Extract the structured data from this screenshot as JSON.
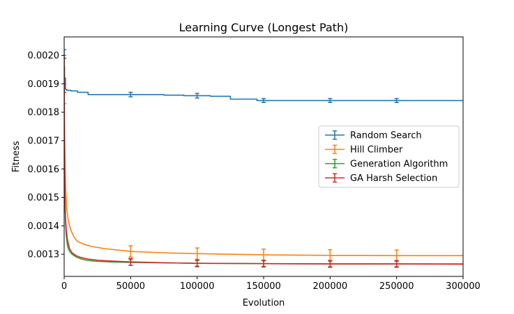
{
  "chart_data": {
    "type": "line",
    "title": "Learning Curve (Longest Path)",
    "xlabel": "Evolution",
    "ylabel": "Fitness",
    "xlim": [
      0,
      300000
    ],
    "ylim": [
      0.001222,
      0.002065
    ],
    "xticks": [
      0,
      50000,
      100000,
      150000,
      200000,
      250000,
      300000
    ],
    "xtick_labels": [
      "0",
      "50000",
      "100000",
      "150000",
      "200000",
      "250000",
      "300000"
    ],
    "yticks": [
      0.0013,
      0.0014,
      0.0015,
      0.0016,
      0.0017,
      0.0018,
      0.0019,
      0.002
    ],
    "ytick_labels": [
      "0.0013",
      "0.0014",
      "0.0015",
      "0.0016",
      "0.0017",
      "0.0018",
      "0.0019",
      "0.0020"
    ],
    "grid": false,
    "legend_position": "center-right",
    "series": [
      {
        "name": "Random Search",
        "color": "#1f77b4",
        "step": true,
        "x": [
          0,
          300,
          1000,
          2000,
          5000,
          10000,
          18000,
          50000,
          75000,
          90000,
          110000,
          125000,
          145000,
          300000
        ],
        "y": [
          0.00196,
          0.00192,
          0.00188,
          0.001877,
          0.001875,
          0.00187,
          0.001862,
          0.001862,
          0.00186,
          0.001858,
          0.001856,
          0.001846,
          0.001841,
          0.001841
        ],
        "error_bars": [
          {
            "x": 0,
            "y": 0.00196,
            "err": 6e-05
          },
          {
            "x": 50000,
            "y": 0.001862,
            "err": 8e-06
          },
          {
            "x": 100000,
            "y": 0.001858,
            "err": 8e-06
          },
          {
            "x": 150000,
            "y": 0.001841,
            "err": 7e-06
          },
          {
            "x": 200000,
            "y": 0.001841,
            "err": 7e-06
          },
          {
            "x": 250000,
            "y": 0.001841,
            "err": 7e-06
          }
        ]
      },
      {
        "name": "Hill Climber",
        "color": "#ff7f0e",
        "step": false,
        "x": [
          0,
          300,
          700,
          1200,
          2000,
          3000,
          5000,
          7500,
          10000,
          15000,
          20000,
          30000,
          40000,
          50000,
          75000,
          100000,
          125000,
          150000,
          175000,
          200000,
          225000,
          250000,
          275000,
          300000
        ],
        "y": [
          0.00191,
          0.00175,
          0.00162,
          0.00152,
          0.00146,
          0.00142,
          0.001385,
          0.00136,
          0.001345,
          0.001335,
          0.001328,
          0.00132,
          0.001315,
          0.00131,
          0.001305,
          0.001302,
          0.0013,
          0.001298,
          0.001297,
          0.001296,
          0.001296,
          0.001295,
          0.001295,
          0.001295
        ],
        "error_bars": [
          {
            "x": 0,
            "y": 0.00191,
            "err": 8e-05
          },
          {
            "x": 50000,
            "y": 0.00131,
            "err": 2e-05
          },
          {
            "x": 100000,
            "y": 0.001302,
            "err": 2e-05
          },
          {
            "x": 150000,
            "y": 0.001298,
            "err": 2e-05
          },
          {
            "x": 200000,
            "y": 0.001296,
            "err": 2e-05
          },
          {
            "x": 250000,
            "y": 0.001295,
            "err": 2e-05
          }
        ]
      },
      {
        "name": "Generation Algorithm",
        "color": "#2ca02c",
        "step": false,
        "x": [
          0,
          200,
          500,
          1000,
          1500,
          2500,
          4000,
          6000,
          9000,
          13000,
          18000,
          25000,
          35000,
          50000,
          75000,
          100000,
          150000,
          200000,
          250000,
          300000
        ],
        "y": [
          0.00194,
          0.00165,
          0.0015,
          0.00141,
          0.00137,
          0.00133,
          0.00131,
          0.0013,
          0.00129,
          0.001283,
          0.001278,
          0.001275,
          0.001273,
          0.001271,
          0.00127,
          0.001268,
          0.001267,
          0.001266,
          0.001266,
          0.001266
        ],
        "error_bars": [
          {
            "x": 0,
            "y": 0.00194,
            "err": 6e-05
          },
          {
            "x": 50000,
            "y": 0.001271,
            "err": 1e-05
          },
          {
            "x": 100000,
            "y": 0.001268,
            "err": 1e-05
          },
          {
            "x": 150000,
            "y": 0.001267,
            "err": 1e-05
          },
          {
            "x": 200000,
            "y": 0.001266,
            "err": 1e-05
          },
          {
            "x": 250000,
            "y": 0.001266,
            "err": 1e-05
          }
        ]
      },
      {
        "name": "GA Harsh Selection",
        "color": "#d62728",
        "step": false,
        "x": [
          0,
          200,
          500,
          1000,
          1500,
          2500,
          4000,
          6000,
          9000,
          13000,
          18000,
          25000,
          35000,
          50000,
          75000,
          100000,
          150000,
          200000,
          250000,
          300000
        ],
        "y": [
          0.00193,
          0.00168,
          0.00152,
          0.00143,
          0.00139,
          0.00135,
          0.00132,
          0.001305,
          0.001295,
          0.001288,
          0.001283,
          0.001279,
          0.001276,
          0.001273,
          0.00127,
          0.001268,
          0.001267,
          0.001266,
          0.001266,
          0.001265
        ],
        "error_bars": [
          {
            "x": 0,
            "y": 0.00193,
            "err": 6e-05
          },
          {
            "x": 50000,
            "y": 0.001273,
            "err": 1.2e-05
          },
          {
            "x": 100000,
            "y": 0.001268,
            "err": 1.2e-05
          },
          {
            "x": 150000,
            "y": 0.001267,
            "err": 1.2e-05
          },
          {
            "x": 200000,
            "y": 0.001266,
            "err": 1.2e-05
          },
          {
            "x": 250000,
            "y": 0.001266,
            "err": 1.2e-05
          }
        ]
      }
    ]
  }
}
